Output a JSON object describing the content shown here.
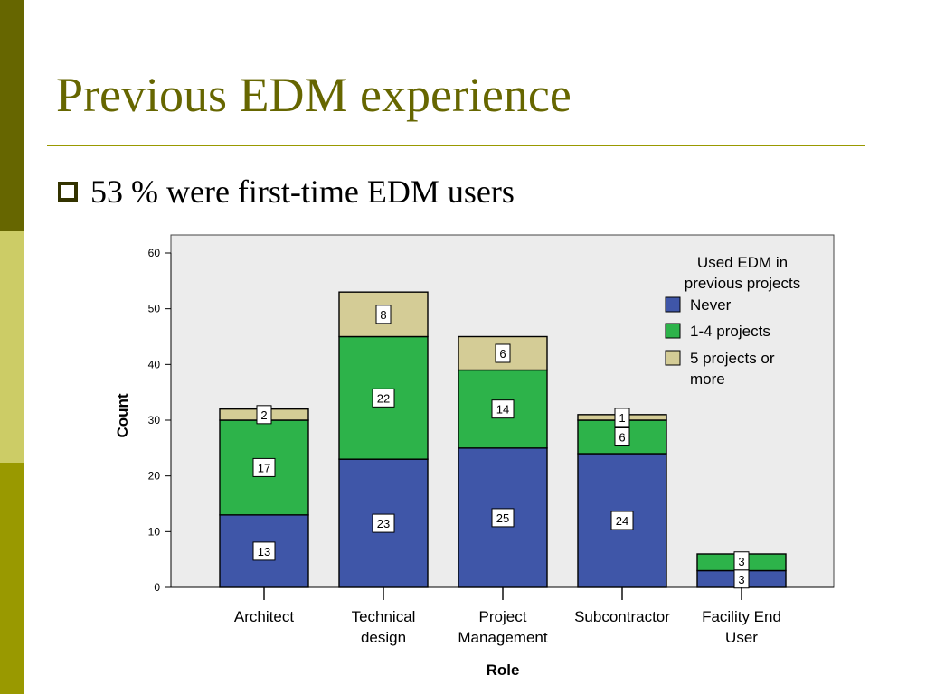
{
  "slide": {
    "title": "Previous EDM experience",
    "bullet": "53 % were first-time EDM users"
  },
  "colors": {
    "sidebar": [
      "#666600",
      "#cccc66",
      "#999900"
    ],
    "title": "#666600",
    "rule": "#999900",
    "plot_background": "#ececec",
    "never": "#3f56a8",
    "one_to_four": "#2db34a",
    "five_plus": "#d4cc96"
  },
  "chart_data": {
    "type": "bar",
    "stacked": true,
    "categories": [
      "Architect",
      "Technical\ndesign",
      "Project\nManagement",
      "Subcontractor",
      "Facility End\nUser"
    ],
    "series": [
      {
        "name": "Never",
        "values": [
          13,
          23,
          25,
          24,
          3
        ],
        "color": "#3f56a8"
      },
      {
        "name": "1-4 projects",
        "values": [
          17,
          22,
          14,
          6,
          3
        ],
        "color": "#2db34a"
      },
      {
        "name": "5 projects or more",
        "values": [
          2,
          8,
          6,
          1,
          0
        ],
        "color": "#d4cc96"
      }
    ],
    "xlabel": "Role",
    "ylabel": "Count",
    "ylim": [
      0,
      60
    ],
    "yticks": [
      0,
      10,
      20,
      30,
      40,
      50,
      60
    ],
    "legend": {
      "title": "Used EDM in previous projects",
      "position": "top-right",
      "labels": [
        "Never",
        "1-4 projects",
        "5 projects or\nmore"
      ]
    },
    "grid": false,
    "data_labels": true
  }
}
